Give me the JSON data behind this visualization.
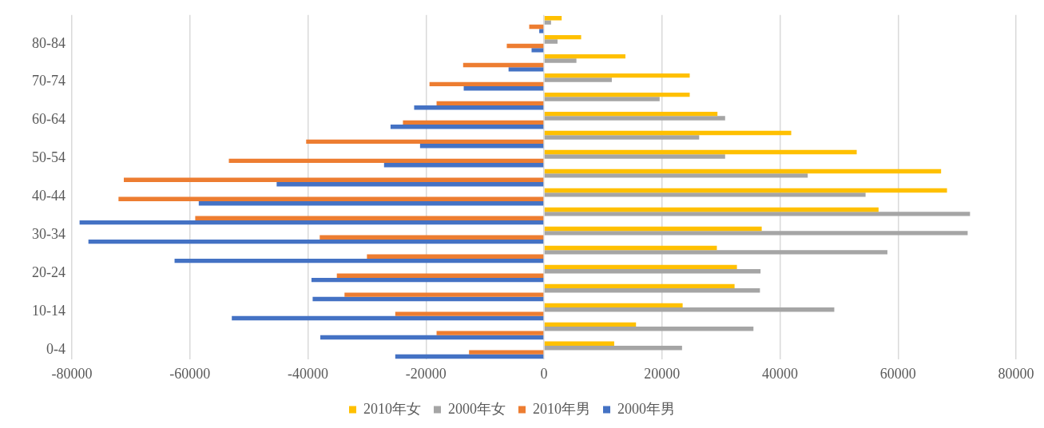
{
  "chart_data": {
    "type": "bar",
    "orientation": "horizontal",
    "categories": [
      null,
      "80-84",
      null,
      "70-74",
      null,
      "60-64",
      null,
      "50-54",
      null,
      "40-44",
      null,
      "30-34",
      null,
      "20-24",
      null,
      "10-14",
      null,
      "0-4"
    ],
    "series": [
      {
        "name": "2010年女",
        "color": "#ffc000",
        "values": [
          3000,
          6300,
          13800,
          24700,
          24700,
          29400,
          41900,
          53000,
          67300,
          68300,
          56700,
          36900,
          29300,
          32700,
          32300,
          23500,
          15600,
          11900
        ]
      },
      {
        "name": "2000年女",
        "color": "#a5a5a5",
        "values": [
          1200,
          2300,
          5500,
          11500,
          19600,
          30700,
          26300,
          30700,
          44700,
          54500,
          72200,
          71800,
          58200,
          36700,
          36600,
          49200,
          35500,
          23400
        ]
      },
      {
        "name": "2010年男",
        "color": "#ed7d31",
        "values": [
          -2500,
          -6300,
          -13700,
          -19400,
          -18200,
          -23900,
          -40300,
          -53400,
          -71200,
          -72100,
          -59100,
          -38000,
          -30000,
          -35100,
          -33800,
          -25200,
          -18200,
          -12700
        ]
      },
      {
        "name": "2000年男",
        "color": "#4472c4",
        "values": [
          -800,
          -2100,
          -6000,
          -13600,
          -22000,
          -26000,
          -21000,
          -27100,
          -45300,
          -58500,
          -78700,
          -77200,
          -62600,
          -39400,
          -39200,
          -52900,
          -37900,
          -25200
        ]
      }
    ],
    "xlim": [
      -80000,
      80000
    ],
    "xticks": [
      -80000,
      -60000,
      -40000,
      -20000,
      0,
      20000,
      40000,
      60000,
      80000
    ],
    "grid": "x",
    "legend": "bottom"
  }
}
